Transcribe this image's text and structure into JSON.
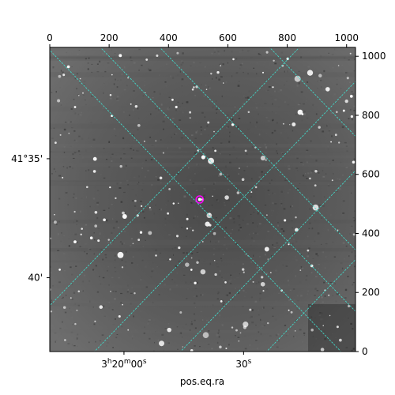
{
  "chart_data": {
    "type": "scatter",
    "title": "",
    "background": "astronomical image (grayscale star field)",
    "xlabel": "pos.eq.ra",
    "ylabel": "",
    "pixel_axes": {
      "x_ticks": [
        0,
        200,
        400,
        600,
        800,
        1000
      ],
      "y_ticks": [
        0,
        200,
        400,
        600,
        800,
        1000
      ],
      "xlim": [
        0,
        1030
      ],
      "ylim": [
        0,
        1030
      ]
    },
    "ra_ticks": [
      {
        "label_main": "3",
        "sup_h": "h",
        "mid": "20",
        "sup_m": "m",
        "tail": "00",
        "sup_s": "s",
        "x": 250
      },
      {
        "label_main": "30",
        "sup_s": "s",
        "x": 653
      }
    ],
    "dec_ticks": [
      {
        "label": "41°35'",
        "y": 653
      },
      {
        "label": "40'",
        "y": 250
      }
    ],
    "grid": true,
    "grid_color": "#40e0d0",
    "marker": {
      "x": 505,
      "y": 515,
      "color": "#ff00ff"
    }
  }
}
